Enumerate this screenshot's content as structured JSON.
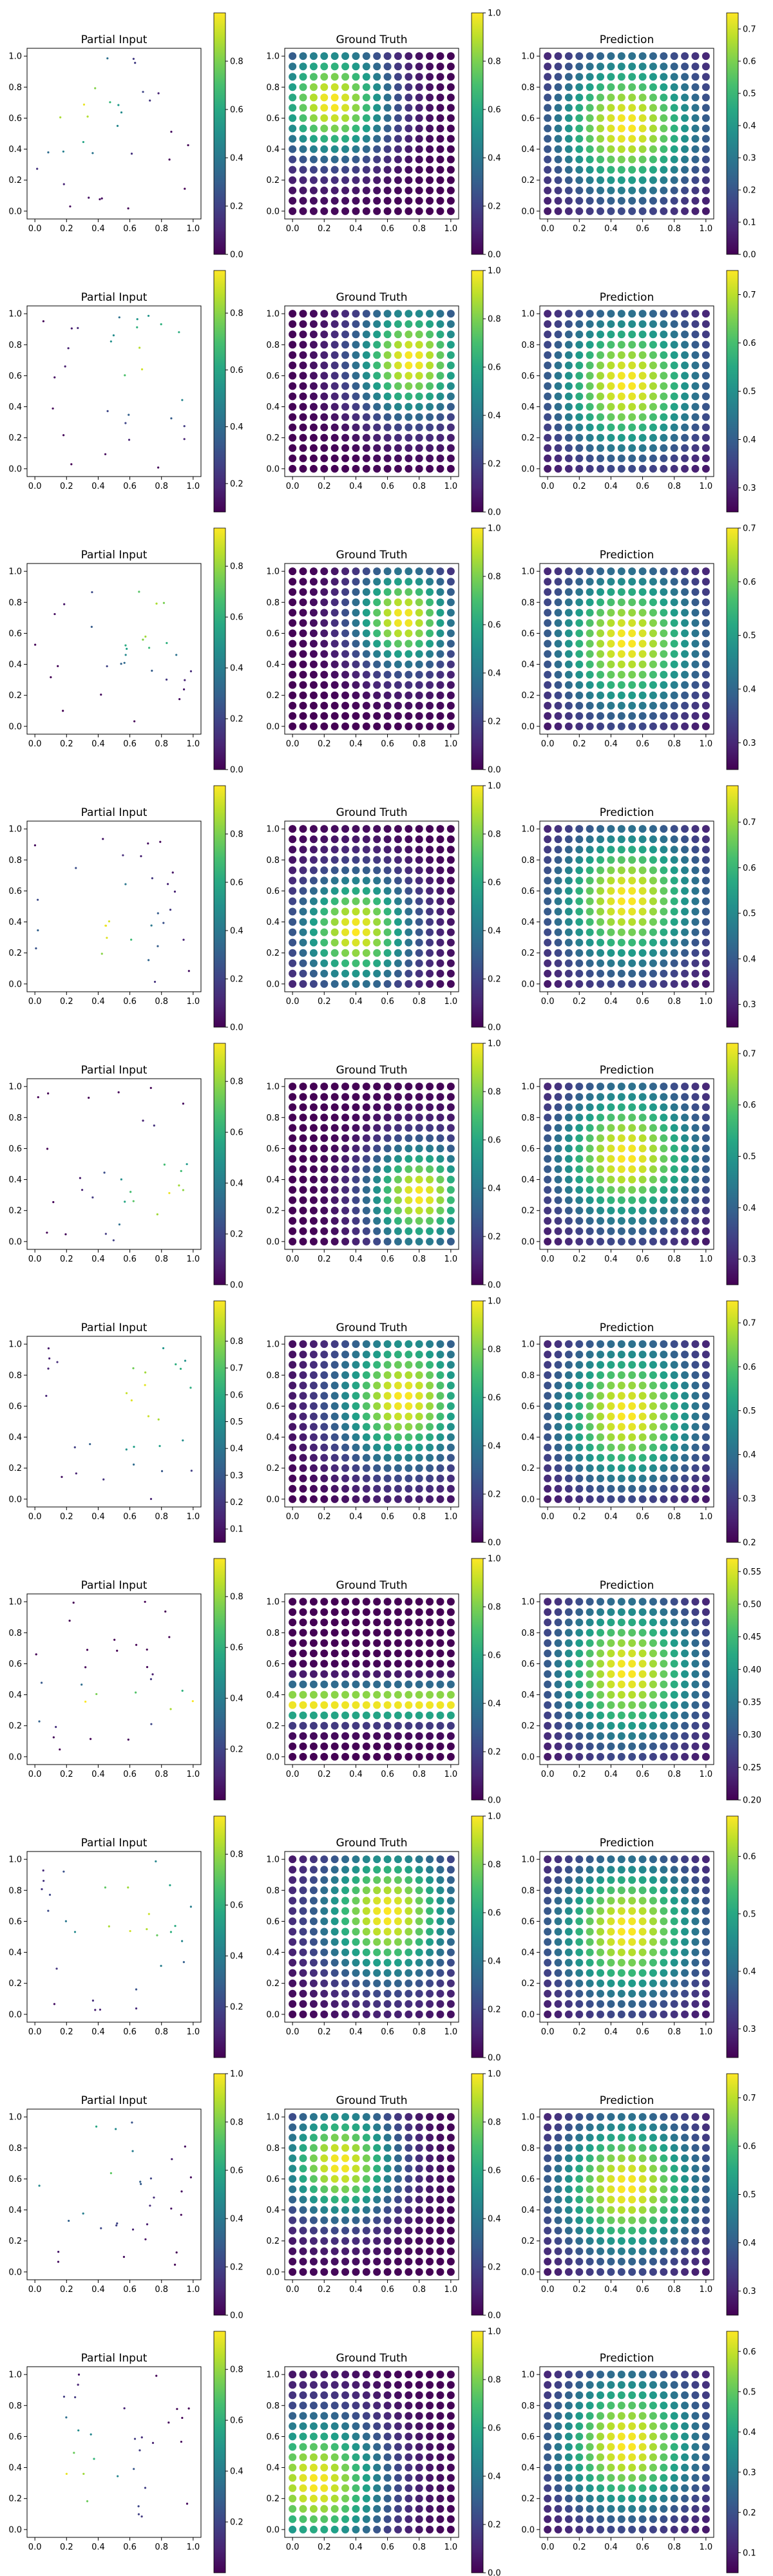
{
  "chart_data": {
    "type": "scatter",
    "layout": "10 rows x 3 columns of panels",
    "colormap": "viridis",
    "column_titles": [
      "Partial Input",
      "Ground Truth",
      "Prediction"
    ],
    "axis_ticks": [
      "0.0",
      "0.2",
      "0.4",
      "0.6",
      "0.8",
      "1.0"
    ],
    "xlim": [
      0,
      1
    ],
    "ylim": [
      0,
      1
    ],
    "grid": false,
    "grid_points_per_axis": 16,
    "partial_point_count": 30,
    "rows": [
      {
        "gt": {
          "type": "gaussian",
          "cx": 0.25,
          "cy": 0.7,
          "sigma": 0.25
        },
        "colorbars": [
          {
            "min": 0.0,
            "max": 1.0,
            "ticks": [
              "0.0",
              "0.2",
              "0.4",
              "0.6",
              "0.8"
            ]
          },
          {
            "min": 0.0,
            "max": 1.0,
            "ticks": [
              "0.0",
              "0.2",
              "0.4",
              "0.6",
              "0.8",
              "1.0"
            ]
          },
          {
            "min": 0.0,
            "max": 0.75,
            "ticks": [
              "0.0",
              "0.1",
              "0.2",
              "0.3",
              "0.4",
              "0.5",
              "0.6",
              "0.7"
            ]
          }
        ]
      },
      {
        "gt": {
          "type": "gaussian",
          "cx": 0.75,
          "cy": 0.7,
          "sigma": 0.25
        },
        "colorbars": [
          {
            "min": 0.1,
            "max": 0.95,
            "ticks": [
              "0.2",
              "0.4",
              "0.6",
              "0.8"
            ]
          },
          {
            "min": 0.0,
            "max": 1.0,
            "ticks": [
              "0.0",
              "0.2",
              "0.4",
              "0.6",
              "0.8",
              "1.0"
            ]
          },
          {
            "min": 0.25,
            "max": 0.75,
            "ticks": [
              "0.3",
              "0.4",
              "0.5",
              "0.6",
              "0.7"
            ]
          }
        ]
      },
      {
        "gt": {
          "type": "gaussian",
          "cx": 0.7,
          "cy": 0.7,
          "sigma": 0.22
        },
        "colorbars": [
          {
            "min": 0.0,
            "max": 0.95,
            "ticks": [
              "0.0",
              "0.2",
              "0.4",
              "0.6",
              "0.8"
            ]
          },
          {
            "min": 0.0,
            "max": 1.0,
            "ticks": [
              "0.0",
              "0.2",
              "0.4",
              "0.6",
              "0.8",
              "1.0"
            ]
          },
          {
            "min": 0.25,
            "max": 0.7,
            "ticks": [
              "0.3",
              "0.4",
              "0.5",
              "0.6",
              "0.7"
            ]
          }
        ]
      },
      {
        "gt": {
          "type": "gaussian",
          "cx": 0.4,
          "cy": 0.35,
          "sigma": 0.25
        },
        "colorbars": [
          {
            "min": 0.0,
            "max": 1.0,
            "ticks": [
              "0.0",
              "0.2",
              "0.4",
              "0.6",
              "0.8"
            ]
          },
          {
            "min": 0.0,
            "max": 1.0,
            "ticks": [
              "0.0",
              "0.2",
              "0.4",
              "0.6",
              "0.8",
              "1.0"
            ]
          },
          {
            "min": 0.25,
            "max": 0.78,
            "ticks": [
              "0.3",
              "0.4",
              "0.5",
              "0.6",
              "0.7"
            ]
          }
        ]
      },
      {
        "gt": {
          "type": "gaussian",
          "cx": 0.8,
          "cy": 0.3,
          "sigma": 0.23
        },
        "colorbars": [
          {
            "min": 0.0,
            "max": 0.95,
            "ticks": [
              "0.0",
              "0.2",
              "0.4",
              "0.6",
              "0.8"
            ]
          },
          {
            "min": 0.0,
            "max": 1.0,
            "ticks": [
              "0.0",
              "0.2",
              "0.4",
              "0.6",
              "0.8",
              "1.0"
            ]
          },
          {
            "min": 0.25,
            "max": 0.72,
            "ticks": [
              "0.3",
              "0.4",
              "0.5",
              "0.6",
              "0.7"
            ]
          }
        ]
      },
      {
        "gt": {
          "type": "gaussian",
          "cx": 0.7,
          "cy": 0.65,
          "sigma": 0.3
        },
        "colorbars": [
          {
            "min": 0.05,
            "max": 0.95,
            "ticks": [
              "0.1",
              "0.2",
              "0.3",
              "0.4",
              "0.5",
              "0.6",
              "0.7",
              "0.8"
            ]
          },
          {
            "min": 0.0,
            "max": 1.0,
            "ticks": [
              "0.0",
              "0.2",
              "0.4",
              "0.6",
              "0.8",
              "1.0"
            ]
          },
          {
            "min": 0.2,
            "max": 0.75,
            "ticks": [
              "0.2",
              "0.3",
              "0.4",
              "0.5",
              "0.6",
              "0.7"
            ]
          }
        ]
      },
      {
        "gt": {
          "type": "band",
          "cx": 0.5,
          "cy": 0.35,
          "sigma": 0.08
        },
        "colorbars": [
          {
            "min": 0.0,
            "max": 0.95,
            "ticks": [
              "0.2",
              "0.4",
              "0.6",
              "0.8"
            ]
          },
          {
            "min": 0.0,
            "max": 1.0,
            "ticks": [
              "0.0",
              "0.2",
              "0.4",
              "0.6",
              "0.8",
              "1.0"
            ]
          },
          {
            "min": 0.2,
            "max": 0.57,
            "ticks": [
              "0.20",
              "0.25",
              "0.30",
              "0.35",
              "0.40",
              "0.45",
              "0.50",
              "0.55"
            ]
          }
        ]
      },
      {
        "gt": {
          "type": "gaussian",
          "cx": 0.6,
          "cy": 0.65,
          "sigma": 0.3
        },
        "colorbars": [
          {
            "min": 0.0,
            "max": 0.95,
            "ticks": [
              "0.2",
              "0.4",
              "0.6",
              "0.8"
            ]
          },
          {
            "min": 0.0,
            "max": 1.0,
            "ticks": [
              "0.0",
              "0.2",
              "0.4",
              "0.6",
              "0.8",
              "1.0"
            ]
          },
          {
            "min": 0.25,
            "max": 0.67,
            "ticks": [
              "0.3",
              "0.4",
              "0.5",
              "0.6"
            ]
          }
        ]
      },
      {
        "gt": {
          "type": "gaussian",
          "cx": 0.3,
          "cy": 0.7,
          "sigma": 0.25
        },
        "colorbars": [
          {
            "min": 0.0,
            "max": 1.0,
            "ticks": [
              "0.0",
              "0.2",
              "0.4",
              "0.6",
              "0.8",
              "1.0"
            ]
          },
          {
            "min": 0.0,
            "max": 1.0,
            "ticks": [
              "0.0",
              "0.2",
              "0.4",
              "0.6",
              "0.8",
              "1.0"
            ]
          },
          {
            "min": 0.25,
            "max": 0.75,
            "ticks": [
              "0.3",
              "0.4",
              "0.5",
              "0.6",
              "0.7"
            ]
          }
        ]
      },
      {
        "gt": {
          "type": "gaussian",
          "cx": 0.15,
          "cy": 0.3,
          "sigma": 0.3
        },
        "colorbars": [
          {
            "min": 0.0,
            "max": 0.95,
            "ticks": [
              "0.2",
              "0.4",
              "0.6",
              "0.8"
            ]
          },
          {
            "min": 0.0,
            "max": 1.0,
            "ticks": [
              "0.0",
              "0.2",
              "0.4",
              "0.6",
              "0.8",
              "1.0"
            ]
          },
          {
            "min": 0.05,
            "max": 0.65,
            "ticks": [
              "0.1",
              "0.2",
              "0.3",
              "0.4",
              "0.5",
              "0.6"
            ]
          }
        ]
      }
    ]
  }
}
